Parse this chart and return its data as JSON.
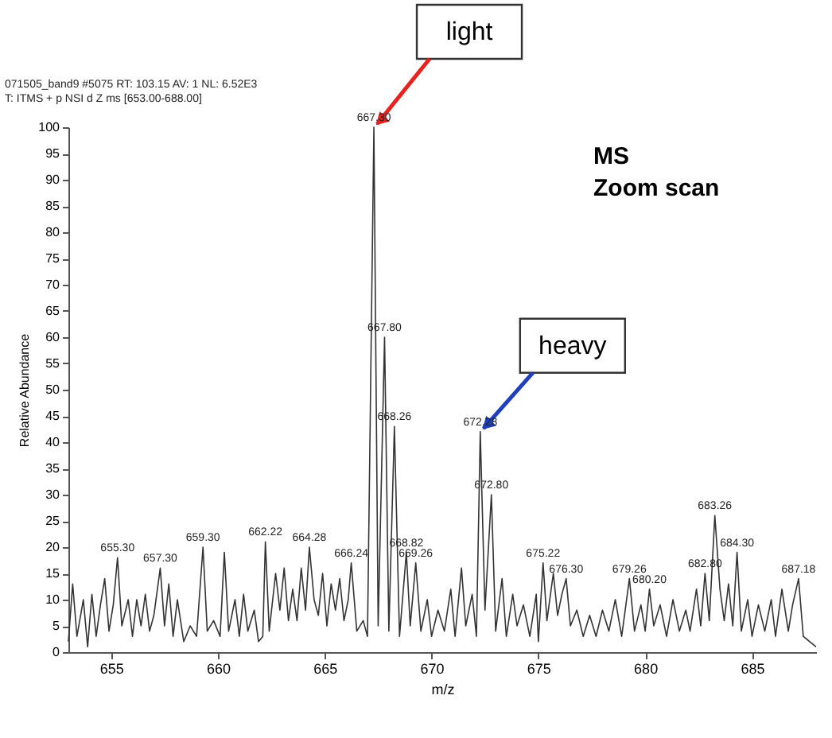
{
  "chart_data": {
    "type": "line",
    "title": "071505_band9 #5075 RT: 103.15 AV: 1 NL: 6.52E3",
    "subtitle": "T: ITMS + p NSI d Z ms [653.00-688.00]",
    "xlabel": "m/z",
    "ylabel": "Relative Abundance",
    "x": [
      653.0,
      653.2,
      653.4,
      653.7,
      653.9,
      654.1,
      654.3,
      654.5,
      654.7,
      654.9,
      655.1,
      655.3,
      655.5,
      655.8,
      656.0,
      656.2,
      656.4,
      656.6,
      656.8,
      657.0,
      657.3,
      657.5,
      657.7,
      657.9,
      658.1,
      658.4,
      658.7,
      659.0,
      659.3,
      659.5,
      659.8,
      660.1,
      660.3,
      660.5,
      660.8,
      661.0,
      661.2,
      661.4,
      661.7,
      661.9,
      662.1,
      662.22,
      662.4,
      662.7,
      662.9,
      663.1,
      663.3,
      663.5,
      663.7,
      663.9,
      664.1,
      664.28,
      664.5,
      664.7,
      664.9,
      665.1,
      665.3,
      665.5,
      665.7,
      665.9,
      666.1,
      666.24,
      666.5,
      666.8,
      667.0,
      667.3,
      667.5,
      667.8,
      668.0,
      668.26,
      668.5,
      668.82,
      669.0,
      669.26,
      669.5,
      669.8,
      670.0,
      670.3,
      670.6,
      670.9,
      671.1,
      671.4,
      671.6,
      671.9,
      672.1,
      672.28,
      672.5,
      672.8,
      673.0,
      673.3,
      673.5,
      673.8,
      674.0,
      674.3,
      674.6,
      674.9,
      675.0,
      675.22,
      675.4,
      675.7,
      675.9,
      676.1,
      676.3,
      676.5,
      676.8,
      677.1,
      677.4,
      677.7,
      678.0,
      678.3,
      678.6,
      678.9,
      679.26,
      679.5,
      679.8,
      680.0,
      680.2,
      680.4,
      680.7,
      681.0,
      681.3,
      681.6,
      681.9,
      682.1,
      682.4,
      682.6,
      682.8,
      683.0,
      683.26,
      683.5,
      683.7,
      683.9,
      684.1,
      684.3,
      684.5,
      684.8,
      685.0,
      685.3,
      685.6,
      685.9,
      686.1,
      686.4,
      686.7,
      686.9,
      687.18,
      687.4,
      687.7,
      688.0
    ],
    "series": [
      {
        "color": "#333333",
        "values": [
          2,
          13,
          3,
          10,
          1,
          11,
          3,
          9,
          14,
          4,
          9,
          18,
          5,
          10,
          3,
          10,
          5,
          11,
          4,
          7,
          16,
          5,
          13,
          3,
          10,
          2,
          5,
          3,
          20,
          4,
          6,
          3,
          19,
          4,
          10,
          3,
          11,
          4,
          8,
          2,
          3,
          21,
          4,
          15,
          8,
          16,
          6,
          12,
          6,
          16,
          8,
          20,
          10,
          7,
          15,
          5,
          13,
          8,
          14,
          6,
          10,
          17,
          4,
          6,
          3,
          100,
          5,
          60,
          4,
          43,
          3,
          19,
          5,
          17,
          4,
          10,
          3,
          8,
          4,
          12,
          3,
          16,
          5,
          11,
          3,
          42,
          8,
          30,
          4,
          14,
          3,
          11,
          5,
          9,
          3,
          11,
          2,
          17,
          6,
          15,
          7,
          11,
          14,
          5,
          8,
          3,
          7,
          3,
          8,
          4,
          10,
          3,
          14,
          4,
          9,
          4,
          12,
          5,
          9,
          3,
          10,
          4,
          8,
          4,
          12,
          5,
          15,
          6,
          26,
          12,
          6,
          13,
          5,
          19,
          4,
          10,
          3,
          9,
          4,
          10,
          3,
          12,
          4,
          9,
          14,
          3,
          2,
          1
        ]
      }
    ],
    "xlim": [
      653,
      688
    ],
    "ylim": [
      0,
      100
    ],
    "xticks": [
      655,
      660,
      665,
      670,
      675,
      680,
      685
    ],
    "yticks": [
      0,
      5,
      10,
      15,
      20,
      25,
      30,
      35,
      40,
      45,
      50,
      55,
      60,
      65,
      70,
      75,
      80,
      85,
      90,
      95,
      100
    ],
    "annotations": [
      {
        "text": "light",
        "x": 667.3,
        "y": 100
      },
      {
        "text": "heavy",
        "x": 672.28,
        "y": 42
      },
      "MS",
      "Zoom scan",
      {
        "text": "667.30",
        "x": 667.3,
        "y": 100
      },
      {
        "text": "667.80",
        "x": 667.8,
        "y": 60
      },
      {
        "text": "668.26",
        "x": 668.26,
        "y": 43
      },
      {
        "text": "672.28",
        "x": 672.28,
        "y": 42
      },
      {
        "text": "672.80",
        "x": 672.8,
        "y": 30
      },
      {
        "text": "655.30",
        "x": 655.3,
        "y": 18
      },
      {
        "text": "657.30",
        "x": 657.3,
        "y": 16
      },
      {
        "text": "659.30",
        "x": 659.3,
        "y": 20
      },
      {
        "text": "662.22",
        "x": 662.22,
        "y": 21
      },
      {
        "text": "664.28",
        "x": 664.28,
        "y": 20
      },
      {
        "text": "666.24",
        "x": 666.24,
        "y": 17
      },
      {
        "text": "668.82",
        "x": 668.82,
        "y": 19
      },
      {
        "text": "669.26",
        "x": 669.26,
        "y": 17
      },
      {
        "text": "675.22",
        "x": 675.22,
        "y": 17
      },
      {
        "text": "676.30",
        "x": 676.3,
        "y": 14
      },
      {
        "text": "679.26",
        "x": 679.26,
        "y": 14
      },
      {
        "text": "680.20",
        "x": 680.2,
        "y": 12
      },
      {
        "text": "682.80",
        "x": 682.8,
        "y": 15
      },
      {
        "text": "683.26",
        "x": 683.26,
        "y": 26
      },
      {
        "text": "684.30",
        "x": 684.3,
        "y": 19
      },
      {
        "text": "687.18",
        "x": 687.18,
        "y": 14
      }
    ],
    "grid": false,
    "marker": "none",
    "line_style": "solid"
  }
}
